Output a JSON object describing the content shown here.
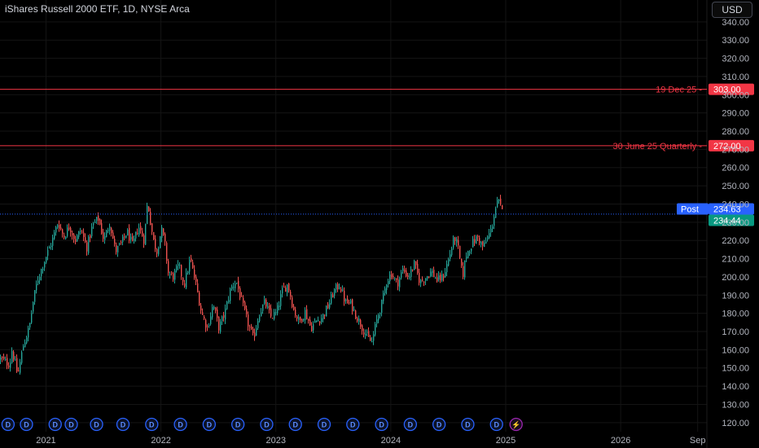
{
  "header": {
    "title": "iShares Russell 2000 ETF, 1D, NYSE Arca",
    "currency_button": "USD"
  },
  "colors": {
    "background": "#000000",
    "up": "#26a69a",
    "down": "#ef5350",
    "hline": "#f23645",
    "post": "#2962ff",
    "last": "#089981",
    "dividend": "#2962ff",
    "split": "#9c27b0"
  },
  "chart_data": {
    "type": "candlestick",
    "y_axis": {
      "range": [
        115,
        352
      ],
      "ticks": [
        120,
        130,
        140,
        150,
        160,
        170,
        180,
        190,
        200,
        210,
        220,
        230,
        240,
        250,
        260,
        270,
        280,
        290,
        300,
        310,
        320,
        330,
        340
      ],
      "tick_labels": [
        "120.00",
        "130.00",
        "140.00",
        "150.00",
        "160.00",
        "170.00",
        "180.00",
        "190.00",
        "200.00",
        "210.00",
        "220.00",
        "230.00",
        "240.00",
        "250.00",
        "260.00",
        "270.00",
        "280.00",
        "290.00",
        "300.00",
        "310.00",
        "320.00",
        "330.00",
        "340.00"
      ],
      "side": "right"
    },
    "x_axis": {
      "range": [
        2020.6,
        2026.75
      ],
      "ticks": [
        2021,
        2022,
        2023,
        2024,
        2025,
        2026,
        2026.67
      ],
      "tick_labels": [
        "2021",
        "2022",
        "2023",
        "2024",
        "2025",
        "2026",
        "Sep"
      ]
    },
    "price_path": [
      [
        2020.6,
        155
      ],
      [
        2020.68,
        152
      ],
      [
        2020.7,
        160
      ],
      [
        2020.75,
        146
      ],
      [
        2020.8,
        163
      ],
      [
        2020.85,
        172
      ],
      [
        2020.88,
        185
      ],
      [
        2020.92,
        198
      ],
      [
        2020.96,
        205
      ],
      [
        2021.0,
        212
      ],
      [
        2021.05,
        220
      ],
      [
        2021.1,
        230
      ],
      [
        2021.15,
        222
      ],
      [
        2021.2,
        228
      ],
      [
        2021.25,
        220
      ],
      [
        2021.3,
        226
      ],
      [
        2021.35,
        216
      ],
      [
        2021.4,
        228
      ],
      [
        2021.45,
        232
      ],
      [
        2021.5,
        220
      ],
      [
        2021.55,
        230
      ],
      [
        2021.6,
        214
      ],
      [
        2021.65,
        218
      ],
      [
        2021.7,
        225
      ],
      [
        2021.75,
        217
      ],
      [
        2021.8,
        228
      ],
      [
        2021.85,
        220
      ],
      [
        2021.88,
        242
      ],
      [
        2021.9,
        232
      ],
      [
        2021.93,
        220
      ],
      [
        2021.96,
        214
      ],
      [
        2022.0,
        226
      ],
      [
        2022.03,
        218
      ],
      [
        2022.06,
        202
      ],
      [
        2022.1,
        200
      ],
      [
        2022.15,
        206
      ],
      [
        2022.2,
        196
      ],
      [
        2022.25,
        210
      ],
      [
        2022.3,
        196
      ],
      [
        2022.35,
        180
      ],
      [
        2022.4,
        172
      ],
      [
        2022.45,
        185
      ],
      [
        2022.5,
        172
      ],
      [
        2022.55,
        180
      ],
      [
        2022.6,
        193
      ],
      [
        2022.65,
        198
      ],
      [
        2022.7,
        186
      ],
      [
        2022.75,
        175
      ],
      [
        2022.8,
        166
      ],
      [
        2022.85,
        180
      ],
      [
        2022.9,
        186
      ],
      [
        2022.95,
        178
      ],
      [
        2023.0,
        180
      ],
      [
        2023.05,
        192
      ],
      [
        2023.1,
        196
      ],
      [
        2023.15,
        182
      ],
      [
        2023.2,
        175
      ],
      [
        2023.25,
        181
      ],
      [
        2023.3,
        172
      ],
      [
        2023.35,
        176
      ],
      [
        2023.4,
        178
      ],
      [
        2023.45,
        184
      ],
      [
        2023.5,
        192
      ],
      [
        2023.55,
        196
      ],
      [
        2023.6,
        186
      ],
      [
        2023.65,
        185
      ],
      [
        2023.7,
        178
      ],
      [
        2023.75,
        172
      ],
      [
        2023.8,
        166
      ],
      [
        2023.83,
        164
      ],
      [
        2023.88,
        178
      ],
      [
        2023.92,
        186
      ],
      [
        2023.96,
        198
      ],
      [
        2024.0,
        202
      ],
      [
        2024.05,
        196
      ],
      [
        2024.1,
        204
      ],
      [
        2024.15,
        200
      ],
      [
        2024.2,
        207
      ],
      [
        2024.25,
        197
      ],
      [
        2024.3,
        200
      ],
      [
        2024.35,
        203
      ],
      [
        2024.4,
        198
      ],
      [
        2024.45,
        200
      ],
      [
        2024.5,
        210
      ],
      [
        2024.55,
        222
      ],
      [
        2024.58,
        216
      ],
      [
        2024.62,
        200
      ],
      [
        2024.65,
        212
      ],
      [
        2024.7,
        218
      ],
      [
        2024.75,
        222
      ],
      [
        2024.8,
        216
      ],
      [
        2024.84,
        222
      ],
      [
        2024.87,
        226
      ],
      [
        2024.9,
        236
      ],
      [
        2024.93,
        242
      ],
      [
        2024.95,
        238
      ],
      [
        2024.97,
        235
      ]
    ],
    "horizontal_lines": [
      {
        "price": 303,
        "label": "19 Dec 25",
        "tag": "303.00"
      },
      {
        "price": 272,
        "label": "30 June 25 Quarterly",
        "tag": "272.00"
      }
    ],
    "post_price": {
      "label": "Post",
      "value": 234.63,
      "tag": "234.63"
    },
    "last_price": {
      "value": 234.44,
      "tag": "234.44"
    },
    "events": [
      {
        "x": 2020.67,
        "type": "D"
      },
      {
        "x": 2020.83,
        "type": "D"
      },
      {
        "x": 2021.08,
        "type": "D"
      },
      {
        "x": 2021.22,
        "type": "D"
      },
      {
        "x": 2021.44,
        "type": "D"
      },
      {
        "x": 2021.67,
        "type": "D"
      },
      {
        "x": 2021.92,
        "type": "D"
      },
      {
        "x": 2022.17,
        "type": "D"
      },
      {
        "x": 2022.42,
        "type": "D"
      },
      {
        "x": 2022.67,
        "type": "D"
      },
      {
        "x": 2022.92,
        "type": "D"
      },
      {
        "x": 2023.17,
        "type": "D"
      },
      {
        "x": 2023.42,
        "type": "D"
      },
      {
        "x": 2023.67,
        "type": "D"
      },
      {
        "x": 2023.92,
        "type": "D"
      },
      {
        "x": 2024.17,
        "type": "D"
      },
      {
        "x": 2024.42,
        "type": "D"
      },
      {
        "x": 2024.67,
        "type": "D"
      },
      {
        "x": 2024.92,
        "type": "D"
      },
      {
        "x": 2025.09,
        "type": "split"
      }
    ],
    "event_symbols": {
      "D": "D",
      "split": "⚡"
    }
  }
}
